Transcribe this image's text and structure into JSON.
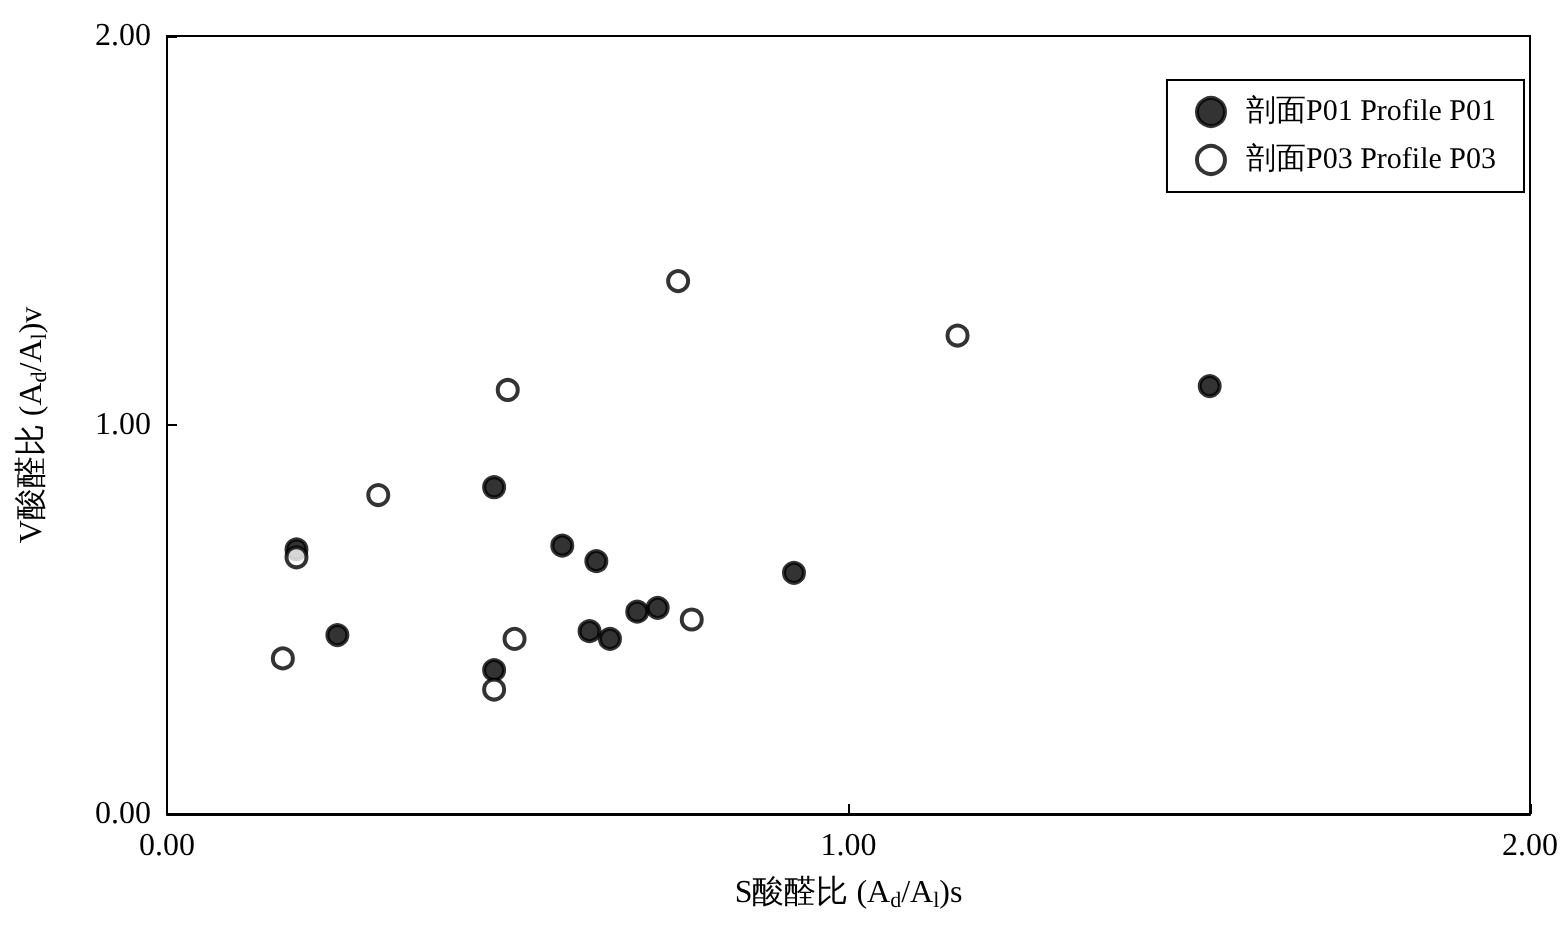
{
  "chart_data": {
    "type": "scatter",
    "xlabel": "S酸醛比 (A$_{d}$/A$_{l}$)s",
    "ylabel": "V酸醛比 (A$_{d}$/A$_{l}$)v",
    "xlim": [
      0,
      2
    ],
    "ylim": [
      0,
      2
    ],
    "xticks": [
      {
        "value": 0,
        "label": "0.00"
      },
      {
        "value": 1,
        "label": "1.00"
      },
      {
        "value": 2,
        "label": "2.00"
      }
    ],
    "yticks": [
      {
        "value": 0,
        "label": "0.00"
      },
      {
        "value": 1,
        "label": "1.00"
      },
      {
        "value": 2,
        "label": "2.00"
      }
    ],
    "grid": false,
    "legend": "top right",
    "marker": "circle",
    "series": [
      {
        "name": "剖面P01 Profile P01",
        "color": "#000000",
        "x": [
          0.19,
          0.25,
          0.48,
          0.48,
          0.58,
          0.63,
          0.62,
          0.65,
          0.69,
          0.72,
          0.92,
          1.53
        ],
        "values": [
          0.68,
          0.46,
          0.84,
          0.37,
          0.69,
          0.65,
          0.47,
          0.45,
          0.52,
          0.53,
          0.62,
          1.1
        ]
      },
      {
        "name": "剖面P03 Profile P03",
        "color": "#ffffff",
        "x": [
          0.17,
          0.19,
          0.31,
          0.48,
          0.5,
          0.51,
          0.75,
          0.77,
          1.16
        ],
        "values": [
          0.4,
          0.66,
          0.82,
          0.32,
          1.09,
          0.45,
          1.37,
          0.5,
          1.23
        ]
      }
    ]
  }
}
